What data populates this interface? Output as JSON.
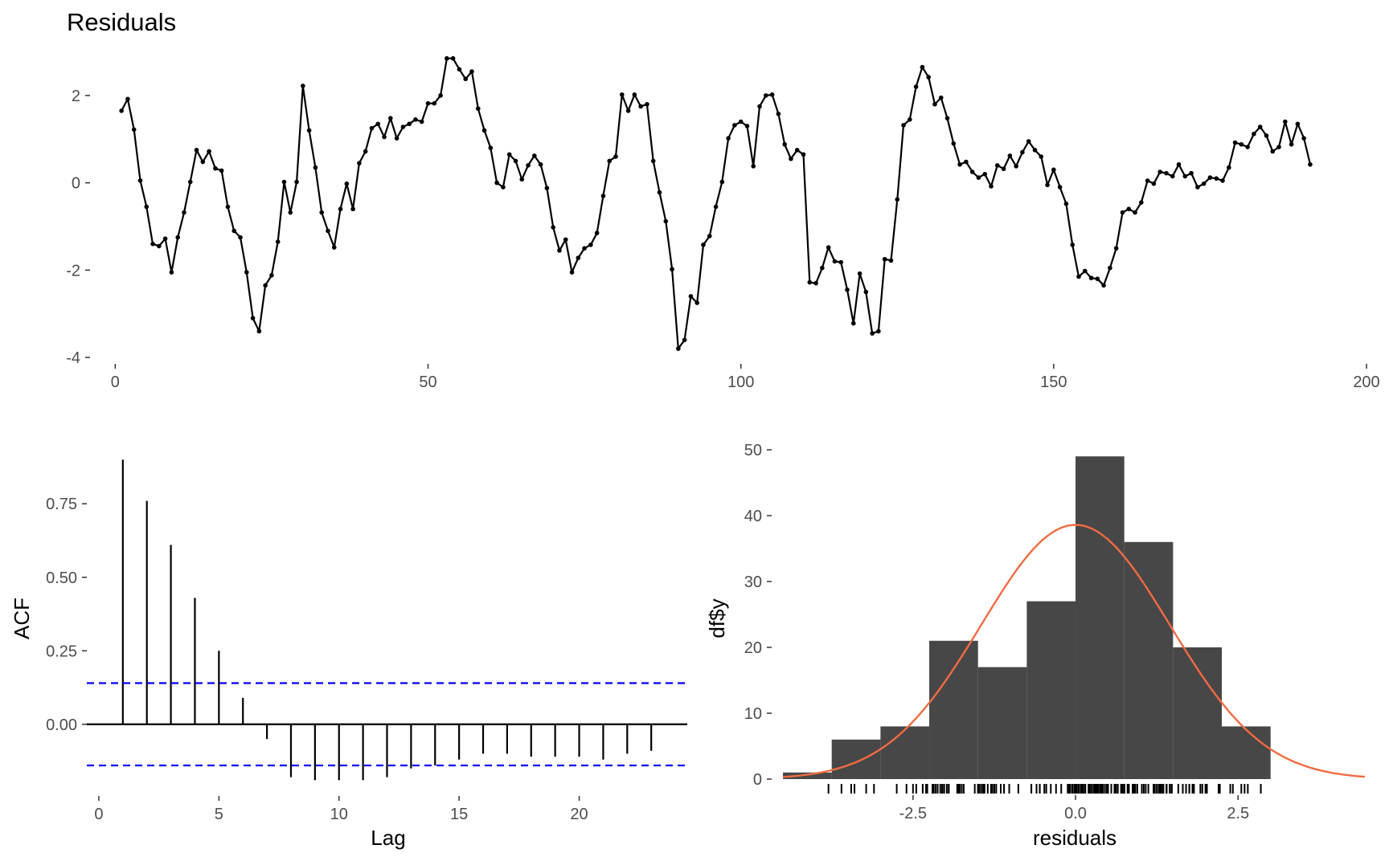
{
  "chart_data": [
    {
      "type": "line",
      "title": "Residuals",
      "xlabel": "",
      "ylabel": "",
      "xlim": [
        -3,
        200
      ],
      "ylim": [
        -4,
        2.9
      ],
      "x_ticks": [
        0,
        50,
        100,
        150,
        200
      ],
      "y_ticks": [
        -4,
        -2,
        0,
        2
      ],
      "x_tick_labels": [
        "0",
        "50",
        "100",
        "150",
        "200"
      ],
      "y_tick_labels": [
        "-4",
        "-2",
        "0",
        "2"
      ],
      "grid": false,
      "line_color": "#000000",
      "y": [
        1.65,
        1.92,
        1.22,
        0.05,
        -0.55,
        -1.4,
        -1.45,
        -1.28,
        -2.05,
        -1.25,
        -0.68,
        0.02,
        0.75,
        0.48,
        0.72,
        0.33,
        0.28,
        -0.55,
        -1.1,
        -1.25,
        -2.05,
        -3.1,
        -3.4,
        -2.35,
        -2.12,
        -1.35,
        0.02,
        -0.68,
        0.02,
        2.22,
        1.2,
        0.35,
        -0.68,
        -1.1,
        -1.48,
        -0.6,
        -0.02,
        -0.6,
        0.45,
        0.72,
        1.25,
        1.35,
        1.05,
        1.48,
        1.02,
        1.28,
        1.35,
        1.45,
        1.4,
        1.82,
        1.82,
        2.0,
        2.85,
        2.85,
        2.6,
        2.38,
        2.55,
        1.7,
        1.2,
        0.8,
        0.0,
        -0.1,
        0.65,
        0.5,
        0.08,
        0.4,
        0.62,
        0.42,
        -0.12,
        -1.02,
        -1.55,
        -1.3,
        -2.05,
        -1.72,
        -1.5,
        -1.42,
        -1.15,
        -0.3,
        0.5,
        0.6,
        2.02,
        1.65,
        2.02,
        1.75,
        1.8,
        0.5,
        -0.22,
        -0.88,
        -1.98,
        -3.8,
        -3.6,
        -2.6,
        -2.75,
        -1.42,
        -1.22,
        -0.55,
        0.02,
        1.02,
        1.32,
        1.4,
        1.3,
        0.38,
        1.75,
        2.0,
        2.02,
        1.58,
        0.88,
        0.55,
        0.75,
        0.65,
        -2.28,
        -2.3,
        -1.95,
        -1.48,
        -1.8,
        -1.82,
        -2.45,
        -3.22,
        -2.08,
        -2.5,
        -3.45,
        -3.4,
        -1.75,
        -1.78,
        -0.38,
        1.32,
        1.45,
        2.2,
        2.65,
        2.42,
        1.8,
        1.95,
        1.48,
        0.9,
        0.42,
        0.48,
        0.25,
        0.12,
        0.2,
        -0.08,
        0.4,
        0.32,
        0.62,
        0.38,
        0.7,
        0.95,
        0.75,
        0.6,
        -0.05,
        0.3,
        -0.1,
        -0.48,
        -1.42,
        -2.15,
        -2.02,
        -2.18,
        -2.2,
        -2.35,
        -1.95,
        -1.5,
        -0.68,
        -0.6,
        -0.68,
        -0.45,
        0.05,
        -0.02,
        0.25,
        0.22,
        0.15,
        0.42,
        0.15,
        0.22,
        -0.1,
        -0.02,
        0.12,
        0.1,
        0.05,
        0.35,
        0.92,
        0.88,
        0.82,
        1.12,
        1.28,
        1.08,
        0.72,
        0.82,
        1.4,
        0.88,
        1.35,
        1.02,
        0.42
      ],
      "x_start": 1
    },
    {
      "type": "bar",
      "title": "",
      "xlabel": "Lag",
      "ylabel": "ACF",
      "xlim": [
        -0.5,
        24.5
      ],
      "ylim": [
        -0.2,
        0.92
      ],
      "x_ticks": [
        0,
        5,
        10,
        15,
        20
      ],
      "y_ticks": [
        0,
        0.25,
        0.5,
        0.75
      ],
      "x_tick_labels": [
        "0",
        "5",
        "10",
        "15",
        "20"
      ],
      "y_tick_labels": [
        "0.00",
        "0.25",
        "0.50",
        "0.75"
      ],
      "categories": [
        1,
        2,
        3,
        4,
        5,
        6,
        7,
        8,
        9,
        10,
        11,
        12,
        13,
        14,
        15,
        16,
        17,
        18,
        19,
        20,
        21,
        22,
        23
      ],
      "values": [
        0.9,
        0.76,
        0.61,
        0.43,
        0.25,
        0.09,
        -0.05,
        -0.18,
        -0.19,
        -0.19,
        -0.19,
        -0.18,
        -0.15,
        -0.14,
        -0.12,
        -0.1,
        -0.1,
        -0.11,
        -0.11,
        -0.11,
        -0.12,
        -0.1,
        -0.09
      ],
      "confidence_bound": 0.14,
      "bound_color": "#0000ff",
      "grid": false
    },
    {
      "type": "bar",
      "title": "",
      "xlabel": "residuals",
      "ylabel": "df$y",
      "xlim": [
        -4.55,
        4.5
      ],
      "ylim": [
        0,
        50
      ],
      "x_ticks": [
        -2.5,
        0.0,
        2.5
      ],
      "y_ticks": [
        0,
        10,
        20,
        30,
        40,
        50
      ],
      "x_tick_labels": [
        "-2.5",
        "0.0",
        "2.5"
      ],
      "y_tick_labels": [
        "0",
        "10",
        "20",
        "30",
        "40",
        "50"
      ],
      "bin_edges": [
        -4.5,
        -3.75,
        -3.0,
        -2.25,
        -1.5,
        -0.75,
        0.0,
        0.75,
        1.5,
        2.25,
        3.0
      ],
      "counts": [
        1,
        6,
        8,
        21,
        17,
        27,
        49,
        36,
        20,
        8
      ],
      "bar_color": "#474747",
      "curve_color": "#f26b43",
      "normal_curve": {
        "mean": 0.0,
        "sd": 1.45,
        "peak": 38.6
      },
      "grid": false
    }
  ]
}
